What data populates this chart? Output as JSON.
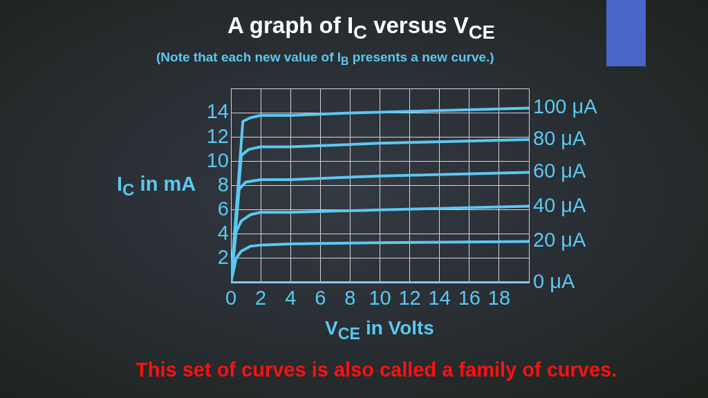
{
  "chart_data": {
    "type": "line",
    "title": "A graph of I$_{C}$ versus V$_{CE}$",
    "subtitle": "(Note that each new value of I$_{B}$ presents a new curve.)",
    "xlabel": "V$_{CE}$ in Volts",
    "ylabel": "I$_{C}$ in mA",
    "annotations": [
      "This set of curves is also called a family of curves."
    ],
    "xlim": [
      0,
      20
    ],
    "ylim": [
      0,
      16
    ],
    "xticks": [
      0,
      2,
      4,
      6,
      8,
      10,
      12,
      14,
      16,
      18,
      {
        "value": 20,
        "label": null
      }
    ],
    "yticks": [
      {
        "value": 0,
        "label": null
      },
      2,
      4,
      6,
      8,
      10,
      12,
      14,
      {
        "value": 16,
        "label": null
      }
    ],
    "grid": true,
    "marker": "none",
    "series": [
      {
        "name": "100 μA",
        "color": "#5bc8f0",
        "x": [
          0,
          0.8,
          1.3,
          2,
          4,
          8,
          14,
          20
        ],
        "values": [
          0,
          13.3,
          13.6,
          13.8,
          13.8,
          14.0,
          14.2,
          14.4
        ]
      },
      {
        "name": "80 μA",
        "color": "#5bc8f0",
        "x": [
          0,
          0.7,
          1.2,
          2,
          4,
          10,
          20
        ],
        "values": [
          0,
          10.5,
          11.0,
          11.2,
          11.2,
          11.5,
          11.8
        ]
      },
      {
        "name": "60 μA",
        "color": "#5bc8f0",
        "x": [
          0,
          0.55,
          1,
          2,
          4,
          10,
          20
        ],
        "values": [
          0,
          7.7,
          8.3,
          8.5,
          8.5,
          8.8,
          9.1
        ]
      },
      {
        "name": "40 μA",
        "color": "#5bc8f0",
        "x": [
          0,
          0.35,
          0.7,
          1.3,
          2,
          4,
          10,
          20
        ],
        "values": [
          0,
          4.2,
          5.1,
          5.6,
          5.8,
          5.8,
          6.0,
          6.3
        ]
      },
      {
        "name": "20 μA",
        "color": "#5bc8f0",
        "x": [
          0,
          0.35,
          0.7,
          1.3,
          2,
          4,
          10,
          20
        ],
        "values": [
          0,
          2.0,
          2.6,
          3.0,
          3.1,
          3.2,
          3.3,
          3.4
        ]
      },
      {
        "name": "0 μA",
        "color": "#5bc8f0",
        "x": [
          0,
          20
        ],
        "values": [
          0,
          0
        ]
      }
    ]
  }
}
